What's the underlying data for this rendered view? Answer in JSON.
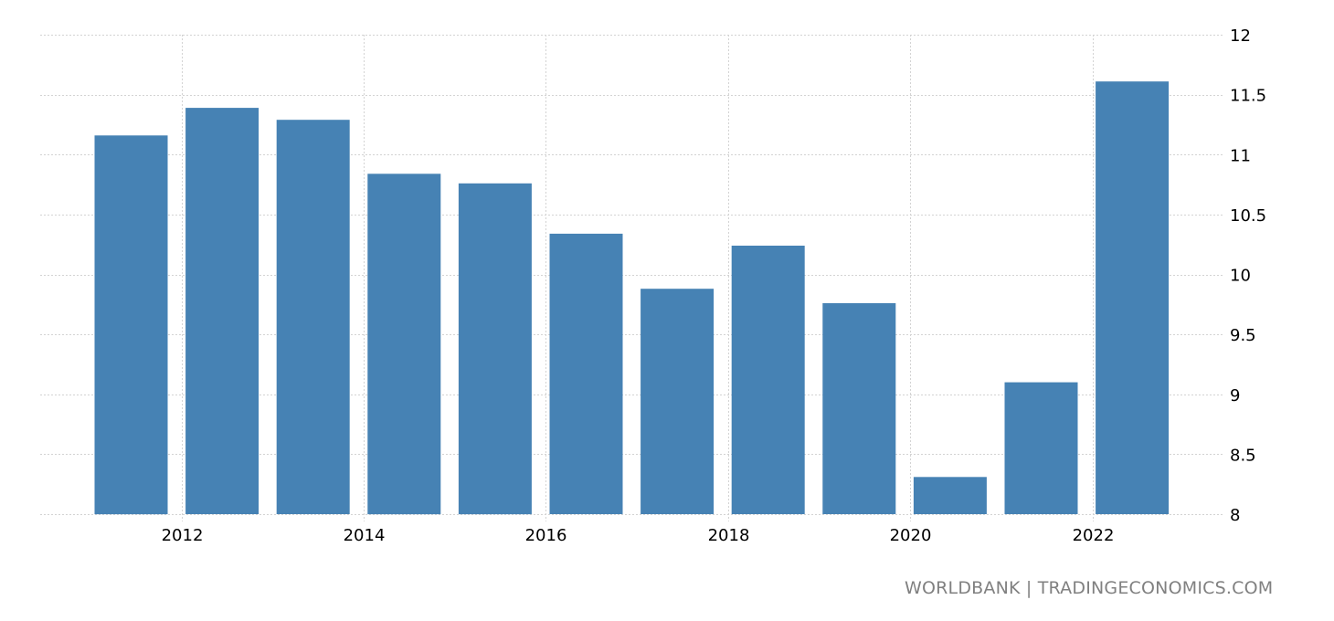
{
  "chart_data": {
    "type": "bar",
    "title": "",
    "xlabel": "",
    "ylabel": "",
    "categories": [
      "2011",
      "2012",
      "2013",
      "2014",
      "2015",
      "2016",
      "2017",
      "2018",
      "2019",
      "2020",
      "2021",
      "2022"
    ],
    "values": [
      11.16,
      11.39,
      11.29,
      10.84,
      10.76,
      10.34,
      9.88,
      10.24,
      9.76,
      8.31,
      9.1,
      11.61
    ],
    "ylim": [
      8,
      12
    ],
    "yticks": [
      8,
      8.5,
      9,
      9.5,
      10,
      10.5,
      11,
      11.5,
      12
    ],
    "ytick_labels": [
      "8",
      "8.5",
      "9",
      "9.5",
      "10",
      "10.5",
      "11",
      "11.5",
      "12"
    ],
    "xtick_labels": [
      "2012",
      "2014",
      "2016",
      "2018",
      "2020",
      "2022"
    ],
    "y_axis_position": "right",
    "grid": true,
    "legend": null,
    "bar_color": "#4682b4",
    "grid_color": "#d3d3d3"
  },
  "source_label": "WORLDBANK | TRADINGECONOMICS.COM"
}
